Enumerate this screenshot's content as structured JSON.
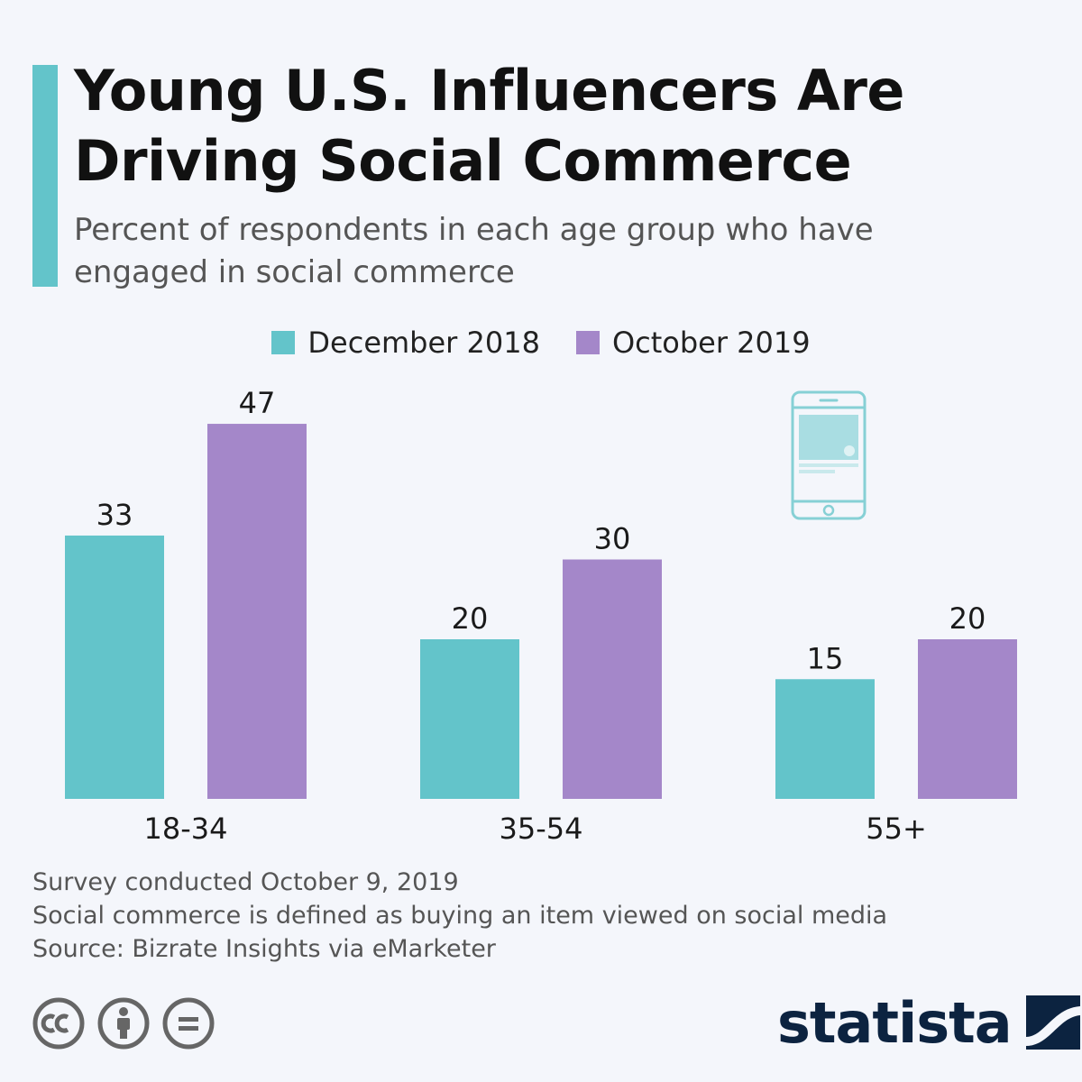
{
  "title": "Young U.S. Influencers Are Driving Social Commerce",
  "subtitle": "Percent of respondents in each age group who have engaged in social commerce",
  "chart_data": {
    "type": "bar",
    "categories": [
      "18-34",
      "35-54",
      "55+"
    ],
    "series": [
      {
        "name": "December 2018",
        "values": [
          33,
          20,
          15
        ],
        "color": "#63c4ca"
      },
      {
        "name": "October 2019",
        "values": [
          47,
          30,
          20
        ],
        "color": "#a487c9"
      }
    ],
    "ylim": [
      0,
      50
    ],
    "grid": false,
    "legend_position": "top-center",
    "data_labels": true
  },
  "footnotes": {
    "line1": "Survey conducted October 9, 2019",
    "line2": "Social commerce is defined as buying an item viewed on social media",
    "line3": "Source: Bizrate Insights via eMarketer"
  },
  "branding": {
    "logo_text": "statista",
    "license_icons": [
      "cc-icon",
      "attribution-icon",
      "no-derivatives-icon"
    ]
  },
  "illustration": "smartphone-icon"
}
